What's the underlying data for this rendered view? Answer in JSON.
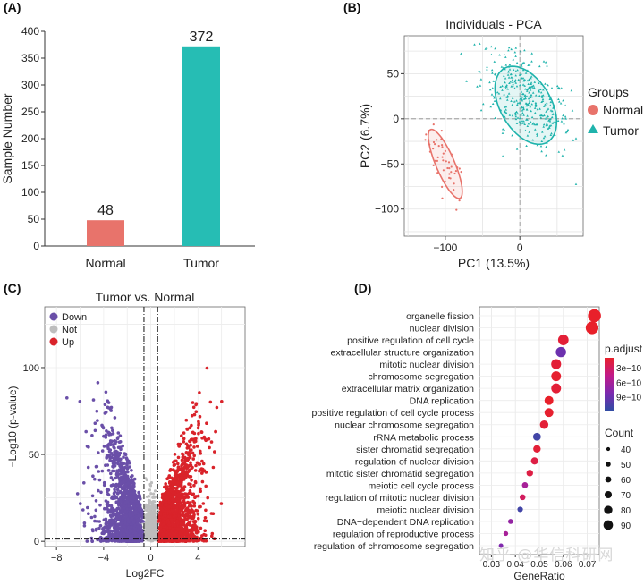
{
  "panels": {
    "a": "(A)",
    "b": "(B)",
    "c": "(C)",
    "d": "(D)"
  },
  "watermark": "知乎 @华信科研网",
  "chart_data": [
    {
      "id": "A",
      "type": "bar",
      "title": "",
      "xlabel": "",
      "ylabel": "Sample Number",
      "categories": [
        "Normal",
        "Tumor"
      ],
      "values": [
        48,
        372
      ],
      "colors": [
        "#e8736b",
        "#26bdb4"
      ],
      "ylim": [
        0,
        400
      ],
      "yticks": [
        0,
        50,
        100,
        150,
        200,
        250,
        300,
        350,
        400
      ],
      "data_labels": true,
      "grid": false
    },
    {
      "id": "B",
      "type": "scatter",
      "title": "Individuals - PCA",
      "xlabel": "PC1 (13.5%)",
      "ylabel": "PC2 (6.7%)",
      "xlim": [
        -155,
        85
      ],
      "ylim": [
        -130,
        92
      ],
      "xticks": [
        -100,
        0
      ],
      "xtick_labels": [
        "−100",
        "0"
      ],
      "yticks": [
        50,
        0,
        -50,
        -100
      ],
      "ytick_labels": [
        "50",
        "0",
        "−50",
        "−100"
      ],
      "grid": true,
      "legend": {
        "title": "Groups",
        "placement": "right",
        "items": [
          {
            "name": "Normal",
            "color": "#e8736b",
            "marker": "circle"
          },
          {
            "name": "Tumor",
            "color": "#1fb3ac",
            "marker": "triangle"
          }
        ]
      },
      "series": [
        {
          "name": "Normal",
          "color": "#e8736b",
          "count": 48,
          "center": [
            -100,
            -52
          ],
          "spread": [
            13,
            24
          ],
          "corr": -0.75,
          "ellipse": {
            "center": [
              -100,
              -50
            ],
            "semi_axes": [
              78,
              22
            ],
            "angle_deg": -62
          }
        },
        {
          "name": "Tumor",
          "color": "#1fb3ac",
          "count": 372,
          "center": [
            8,
            22
          ],
          "spread": [
            30,
            28
          ],
          "corr": -0.55,
          "ellipse": {
            "center": [
              8,
              15
            ],
            "semi_axes": [
              92,
              58
            ],
            "angle_deg": -48
          }
        }
      ]
    },
    {
      "id": "C",
      "type": "scatter",
      "title": "Tumor vs. Normal",
      "xlabel": "Log2FC",
      "ylabel": "−Log10 (p-value)",
      "xlim": [
        -9,
        8
      ],
      "ylim": [
        -3,
        135
      ],
      "xticks": [
        -8,
        -4,
        0,
        4
      ],
      "xtick_labels": [
        "−8",
        "−4",
        "0",
        "4"
      ],
      "yticks": [
        0,
        50,
        100
      ],
      "ytick_labels": [
        "0",
        "50",
        "100"
      ],
      "vlines": [
        -0.58,
        0.58
      ],
      "hline": 1.3,
      "grid": true,
      "legend": {
        "placement": "top-left",
        "items": [
          {
            "name": "Down",
            "color": "#6a4fa8"
          },
          {
            "name": "Not",
            "color": "#bdbdbd"
          },
          {
            "name": "Up",
            "color": "#d9232a"
          }
        ]
      }
    },
    {
      "id": "D",
      "type": "scatter",
      "title": "",
      "xlabel": "GeneRatio",
      "ylabel": "",
      "xlim": [
        0.025,
        0.075
      ],
      "xticks": [
        0.03,
        0.04,
        0.05,
        0.06,
        0.07
      ],
      "xtick_labels": [
        "0.03",
        "0.04",
        "0.05",
        "0.06",
        "0.07"
      ],
      "grid": true,
      "terms": [
        {
          "name": "organelle fission",
          "gene_ratio": 0.073,
          "count": 92,
          "p_adjust": 1e-10
        },
        {
          "name": "nuclear division",
          "gene_ratio": 0.072,
          "count": 90,
          "p_adjust": 1e-10
        },
        {
          "name": "positive regulation of cell cycle",
          "gene_ratio": 0.06,
          "count": 76,
          "p_adjust": 1.5e-10
        },
        {
          "name": "extracellular structure organization",
          "gene_ratio": 0.059,
          "count": 74,
          "p_adjust": 9e-10
        },
        {
          "name": "mitotic nuclear division",
          "gene_ratio": 0.057,
          "count": 72,
          "p_adjust": 1.5e-10
        },
        {
          "name": "chromosome segregation",
          "gene_ratio": 0.057,
          "count": 71,
          "p_adjust": 1.2e-10
        },
        {
          "name": "extracellular matrix organization",
          "gene_ratio": 0.057,
          "count": 71,
          "p_adjust": 1.5e-10
        },
        {
          "name": "DNA replication",
          "gene_ratio": 0.054,
          "count": 65,
          "p_adjust": 1e-10
        },
        {
          "name": "positive regulation of cell cycle process",
          "gene_ratio": 0.054,
          "count": 65,
          "p_adjust": 1.2e-10
        },
        {
          "name": "nuclear chromosome segregation",
          "gene_ratio": 0.052,
          "count": 62,
          "p_adjust": 1.5e-10
        },
        {
          "name": "rRNA metabolic process",
          "gene_ratio": 0.049,
          "count": 58,
          "p_adjust": 1.1e-09
        },
        {
          "name": "sister chromatid segregation",
          "gene_ratio": 0.049,
          "count": 56,
          "p_adjust": 1.5e-10
        },
        {
          "name": "regulation of nuclear division",
          "gene_ratio": 0.048,
          "count": 54,
          "p_adjust": 2e-10
        },
        {
          "name": "mitotic sister chromatid segregation",
          "gene_ratio": 0.046,
          "count": 50,
          "p_adjust": 2e-10
        },
        {
          "name": "meiotic cell cycle process",
          "gene_ratio": 0.044,
          "count": 46,
          "p_adjust": 6e-10
        },
        {
          "name": "regulation of mitotic nuclear division",
          "gene_ratio": 0.043,
          "count": 45,
          "p_adjust": 3e-10
        },
        {
          "name": "meiotic nuclear division",
          "gene_ratio": 0.042,
          "count": 43,
          "p_adjust": 1.1e-09
        },
        {
          "name": "DNA−dependent DNA replication",
          "gene_ratio": 0.038,
          "count": 40,
          "p_adjust": 7e-10
        },
        {
          "name": "regulation of reproductive process",
          "gene_ratio": 0.036,
          "count": 38,
          "p_adjust": 6e-10
        },
        {
          "name": "regulation of chromosome segregation",
          "gene_ratio": 0.034,
          "count": 36,
          "p_adjust": 8e-10
        }
      ],
      "color_legend": {
        "title": "p.adjust",
        "ticks": [
          "3e−10",
          "6e−10",
          "9e−10"
        ],
        "tick_values": [
          3e-10,
          6e-10,
          9e-10
        ],
        "range": [
          1e-10,
          1.2e-09
        ],
        "colors": [
          "#e8202a",
          "#c01a8a",
          "#7a2ab0",
          "#2d4fa3"
        ]
      },
      "size_legend": {
        "title": "Count",
        "values": [
          40,
          50,
          60,
          70,
          80,
          90
        ],
        "labels": [
          "40",
          "50",
          "60",
          "70",
          "80",
          "90"
        ]
      }
    }
  ]
}
